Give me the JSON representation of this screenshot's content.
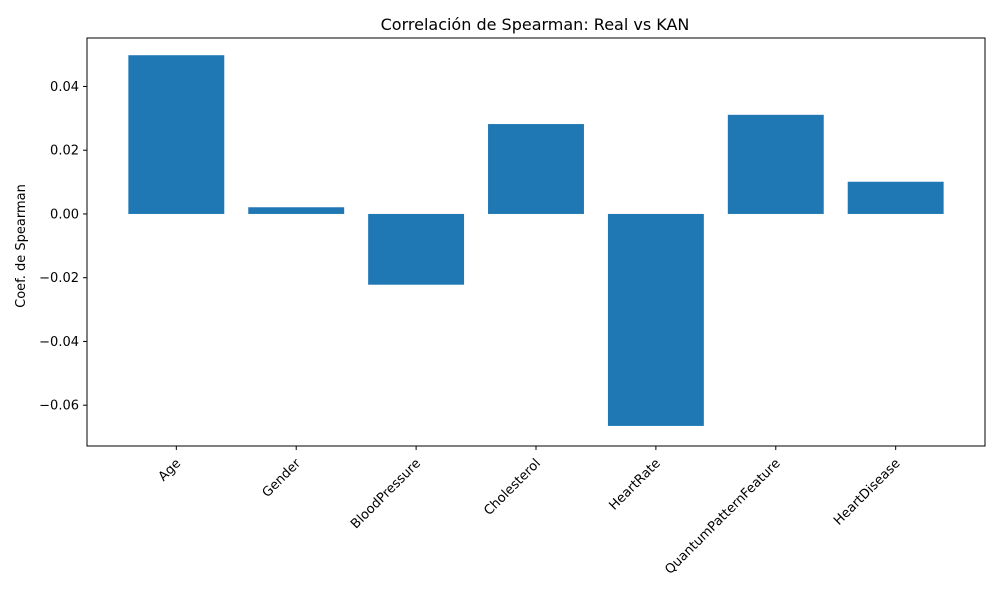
{
  "chart_data": {
    "type": "bar",
    "title": "Correlación de Spearman: Real vs KAN",
    "xlabel": "",
    "ylabel": "Coef. de Spearman",
    "categories": [
      "Age",
      "Gender",
      "BloodPressure",
      "Cholesterol",
      "HeartRate",
      "QuantumPatternFeature",
      "HeartDisease"
    ],
    "values": [
      0.0498,
      0.0021,
      -0.0222,
      0.0282,
      -0.0665,
      0.0311,
      0.0101
    ],
    "ylim": [
      -0.0728,
      0.0552
    ],
    "yticks": [
      -0.06,
      -0.04,
      -0.02,
      0.0,
      0.02,
      0.04
    ],
    "ytick_labels": [
      "−0.06",
      "−0.04",
      "−0.02",
      "0.00",
      "0.02",
      "0.04"
    ],
    "bar_color": "#1f77b4",
    "grid": false,
    "legend": "none"
  }
}
